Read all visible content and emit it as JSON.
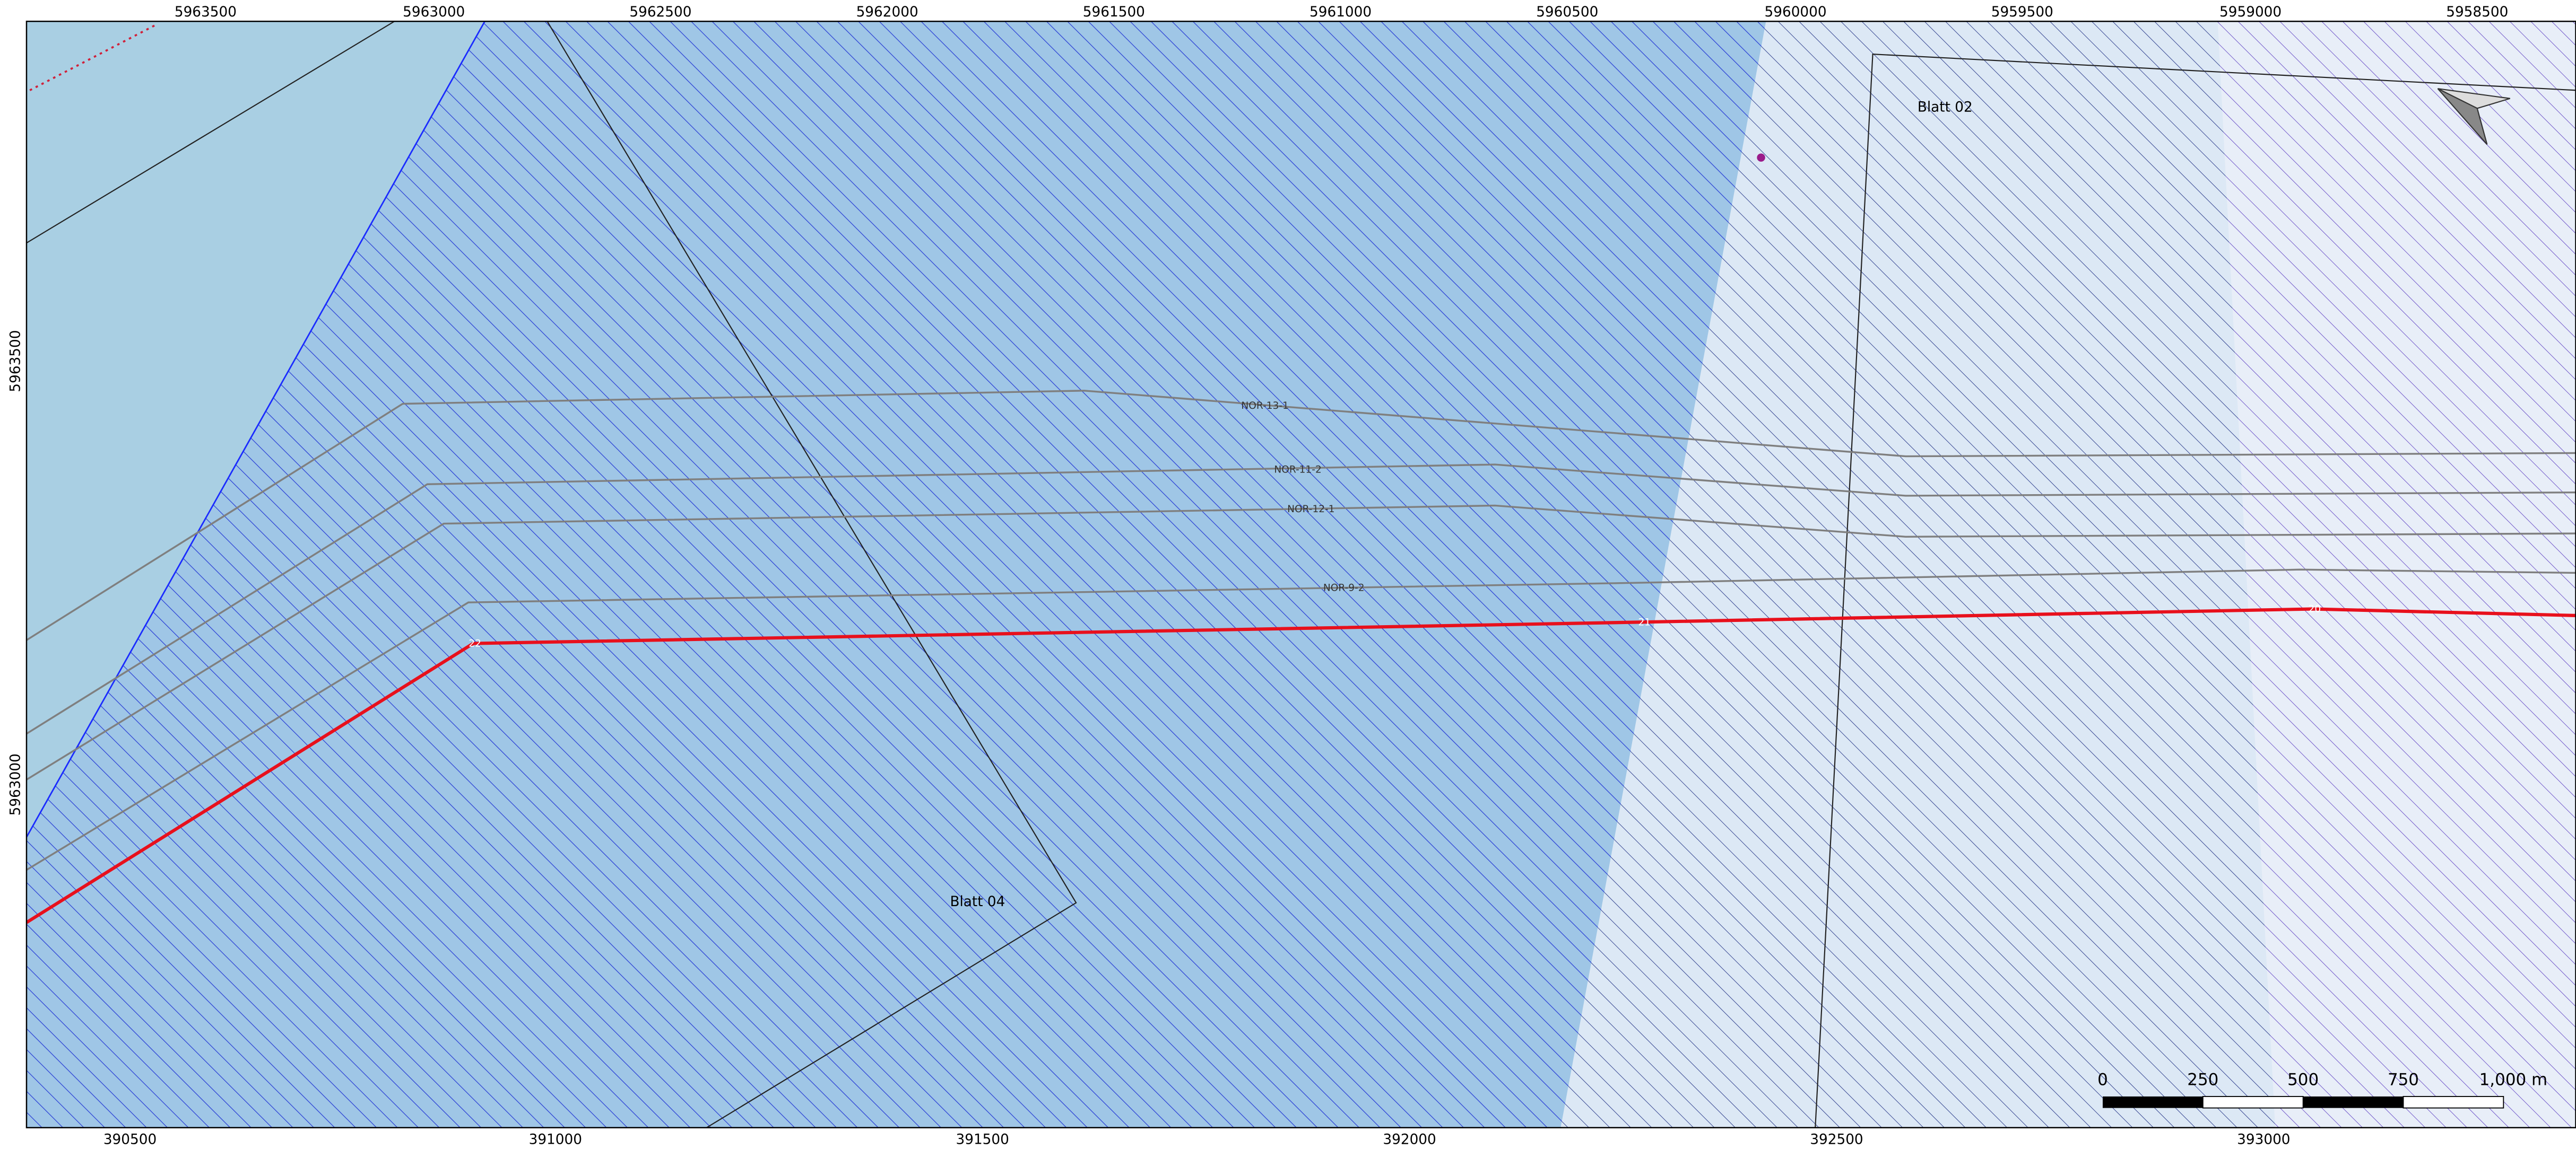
{
  "axes": {
    "top": [
      "5963500",
      "5963000",
      "5962500",
      "5962000",
      "5961500",
      "5961000",
      "5960500",
      "5960000",
      "5959500",
      "5959000",
      "5958500"
    ],
    "left": [
      "5963500",
      "5963000"
    ],
    "bottom": [
      "390500",
      "391000",
      "391500",
      "392000",
      "392500",
      "393000"
    ]
  },
  "sheets": [
    "Blatt 02",
    "Blatt 04"
  ],
  "cables": [
    "NOR-13-1",
    "NOR-11-2",
    "NOR-12-1",
    "NOR-9-2"
  ],
  "route": {
    "kp_labels": [
      "22",
      "21",
      "20"
    ]
  },
  "scale_bar": {
    "labels": [
      "0",
      "250",
      "500",
      "750",
      "1,000 m"
    ]
  }
}
